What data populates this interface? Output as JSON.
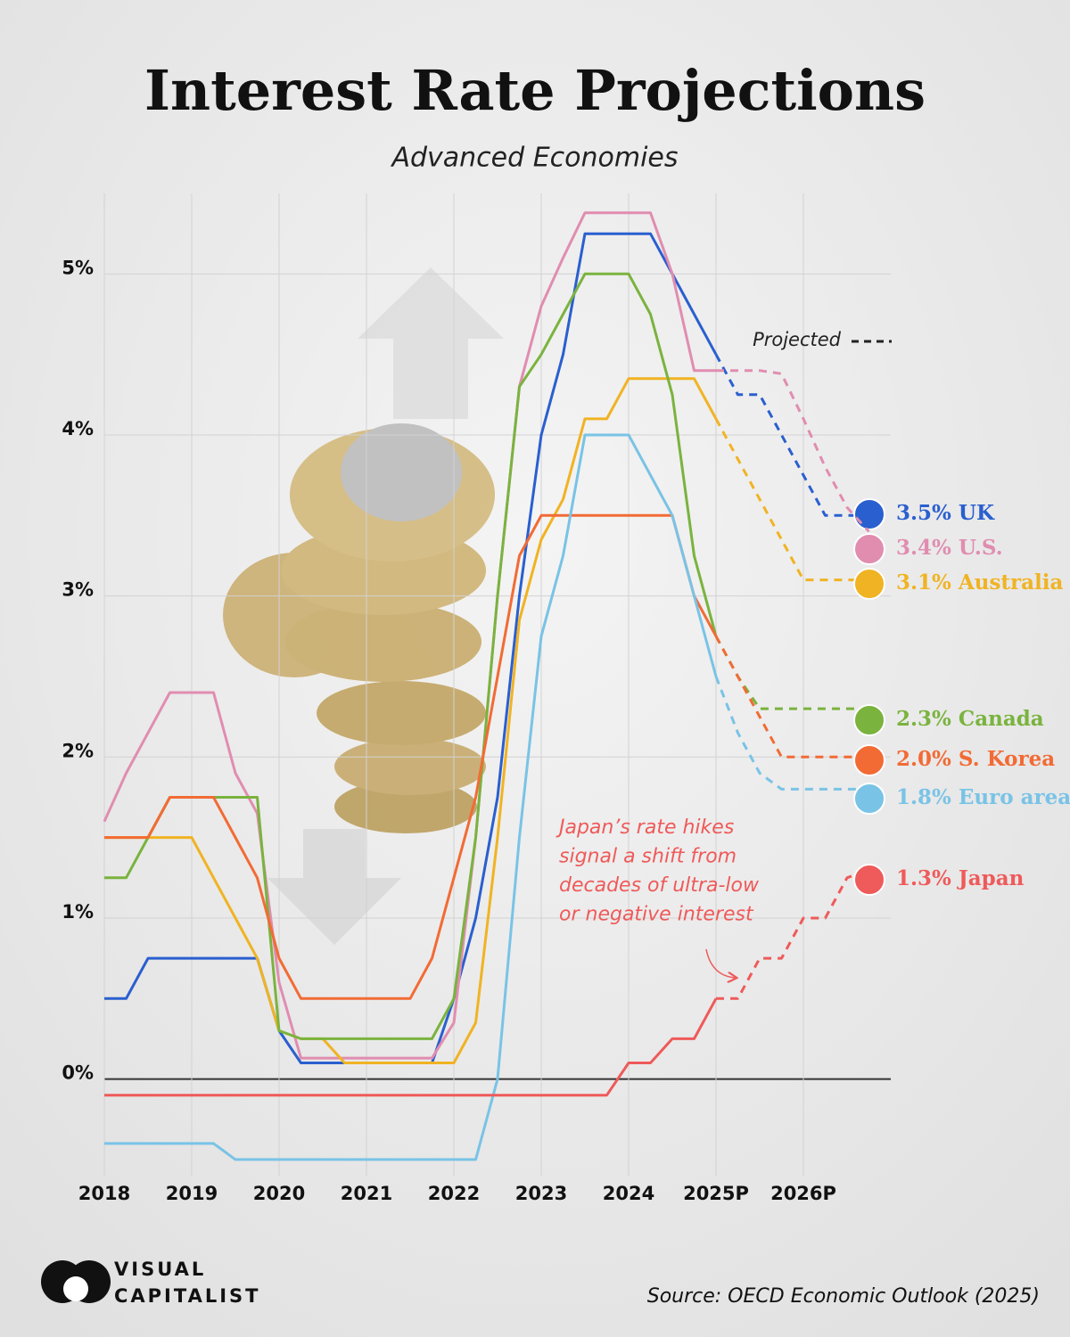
{
  "chart_data": {
    "type": "line",
    "title": "Interest Rate Projections",
    "subtitle": "Advanced Economies",
    "x": [
      2018,
      2018.25,
      2018.5,
      2018.75,
      2019,
      2019.25,
      2019.5,
      2019.75,
      2020,
      2020.25,
      2020.5,
      2020.75,
      2021,
      2021.25,
      2021.5,
      2021.75,
      2022,
      2022.25,
      2022.5,
      2022.75,
      2023,
      2023.25,
      2023.5,
      2023.75,
      2024,
      2024.25,
      2024.5,
      2024.75,
      2025,
      2025.25,
      2025.5,
      2025.75,
      2026,
      2026.25,
      2026.5,
      2026.75
    ],
    "projected_from": 2025,
    "projected_label": "Projected",
    "series": [
      {
        "name": "UK",
        "color": "#2a5fcf",
        "values": [
          0.5,
          0.5,
          0.75,
          0.75,
          0.75,
          0.75,
          0.75,
          0.75,
          0.3,
          0.1,
          0.1,
          0.1,
          0.1,
          0.1,
          0.1,
          0.1,
          0.5,
          1.0,
          1.75,
          3.0,
          4.0,
          4.5,
          5.25,
          5.25,
          5.25,
          5.25,
          5.0,
          4.75,
          4.5,
          4.25,
          4.25,
          4.0,
          3.75,
          3.5,
          3.5,
          3.5
        ],
        "value_labels": [
          null,
          null,
          null,
          null,
          null,
          null,
          null,
          null,
          null,
          null,
          null,
          null,
          null,
          null,
          null,
          null,
          null,
          null,
          null,
          null,
          null,
          null,
          null,
          null,
          null,
          null,
          null,
          null,
          null,
          null,
          null,
          null,
          null,
          null,
          null,
          "3.5%"
        ]
      },
      {
        "name": "U.S.",
        "color": "#e08db0",
        "values": [
          1.6,
          1.9,
          2.15,
          2.4,
          2.4,
          2.4,
          1.9,
          1.65,
          0.6,
          0.13,
          0.13,
          0.13,
          0.13,
          0.13,
          0.13,
          0.13,
          0.35,
          1.5,
          3.0,
          4.3,
          4.8,
          5.1,
          5.38,
          5.38,
          5.38,
          5.38,
          5.0,
          4.4,
          4.4,
          4.4,
          4.4,
          4.38,
          4.1,
          3.8,
          3.55,
          3.4
        ],
        "value_labels": [
          null,
          null,
          null,
          null,
          null,
          null,
          null,
          null,
          null,
          null,
          null,
          null,
          null,
          null,
          null,
          null,
          null,
          null,
          null,
          null,
          null,
          null,
          null,
          null,
          null,
          null,
          null,
          null,
          null,
          null,
          null,
          null,
          null,
          null,
          null,
          "3.4%"
        ]
      },
      {
        "name": "Australia",
        "color": "#f0b323",
        "values": [
          1.5,
          1.5,
          1.5,
          1.5,
          1.5,
          1.25,
          1.0,
          0.75,
          0.3,
          0.25,
          0.25,
          0.1,
          0.1,
          0.1,
          0.1,
          0.1,
          0.1,
          0.35,
          1.5,
          2.85,
          3.35,
          3.6,
          4.1,
          4.1,
          4.35,
          4.35,
          4.35,
          4.35,
          4.1,
          3.85,
          3.6,
          3.35,
          3.1,
          3.1,
          3.1,
          3.1
        ],
        "value_labels": [
          null,
          null,
          null,
          null,
          null,
          null,
          null,
          null,
          null,
          null,
          null,
          null,
          null,
          null,
          null,
          null,
          null,
          null,
          null,
          null,
          null,
          null,
          null,
          null,
          null,
          null,
          null,
          null,
          null,
          null,
          null,
          null,
          null,
          null,
          null,
          "3.1%"
        ]
      },
      {
        "name": "Canada",
        "color": "#7ab33e",
        "values": [
          1.25,
          1.25,
          1.5,
          1.75,
          1.75,
          1.75,
          1.75,
          1.75,
          0.3,
          0.25,
          0.25,
          0.25,
          0.25,
          0.25,
          0.25,
          0.25,
          0.5,
          1.5,
          3.0,
          4.3,
          4.5,
          4.75,
          5.0,
          5.0,
          5.0,
          4.75,
          4.25,
          3.25,
          2.75,
          2.5,
          2.3,
          2.3,
          2.3,
          2.3,
          2.3,
          2.3
        ],
        "value_labels": [
          null,
          null,
          null,
          null,
          null,
          null,
          null,
          null,
          null,
          null,
          null,
          null,
          null,
          null,
          null,
          null,
          null,
          null,
          null,
          null,
          null,
          null,
          null,
          null,
          null,
          null,
          null,
          null,
          null,
          null,
          null,
          null,
          null,
          null,
          null,
          "2.3%"
        ]
      },
      {
        "name": "S. Korea",
        "color": "#f26b35",
        "values": [
          1.5,
          1.5,
          1.5,
          1.75,
          1.75,
          1.75,
          1.5,
          1.25,
          0.75,
          0.5,
          0.5,
          0.5,
          0.5,
          0.5,
          0.5,
          0.75,
          1.25,
          1.75,
          2.5,
          3.25,
          3.5,
          3.5,
          3.5,
          3.5,
          3.5,
          3.5,
          3.5,
          3.0,
          2.75,
          2.5,
          2.25,
          2.0,
          2.0,
          2.0,
          2.0,
          2.0
        ],
        "value_labels": [
          null,
          null,
          null,
          null,
          null,
          null,
          null,
          null,
          null,
          null,
          null,
          null,
          null,
          null,
          null,
          null,
          null,
          null,
          null,
          null,
          null,
          null,
          null,
          null,
          null,
          null,
          null,
          null,
          null,
          null,
          null,
          null,
          null,
          null,
          null,
          "2.0%"
        ]
      },
      {
        "name": "Euro area",
        "color": "#79c3e6",
        "values": [
          -0.4,
          -0.4,
          -0.4,
          -0.4,
          -0.4,
          -0.4,
          -0.5,
          -0.5,
          -0.5,
          -0.5,
          -0.5,
          -0.5,
          -0.5,
          -0.5,
          -0.5,
          -0.5,
          -0.5,
          -0.5,
          0.0,
          1.5,
          2.75,
          3.25,
          4.0,
          4.0,
          4.0,
          3.75,
          3.5,
          3.0,
          2.5,
          2.15,
          1.9,
          1.8,
          1.8,
          1.8,
          1.8,
          1.8
        ],
        "value_labels": [
          null,
          null,
          null,
          null,
          null,
          null,
          null,
          null,
          null,
          null,
          null,
          null,
          null,
          null,
          null,
          null,
          null,
          null,
          null,
          null,
          null,
          null,
          null,
          null,
          null,
          null,
          null,
          null,
          null,
          null,
          null,
          null,
          null,
          null,
          null,
          "1.8%"
        ]
      },
      {
        "name": "Japan",
        "color": "#ef5a5a",
        "values": [
          -0.1,
          -0.1,
          -0.1,
          -0.1,
          -0.1,
          -0.1,
          -0.1,
          -0.1,
          -0.1,
          -0.1,
          -0.1,
          -0.1,
          -0.1,
          -0.1,
          -0.1,
          -0.1,
          -0.1,
          -0.1,
          -0.1,
          -0.1,
          -0.1,
          -0.1,
          -0.1,
          -0.1,
          0.1,
          0.1,
          0.25,
          0.25,
          0.5,
          0.5,
          0.75,
          0.75,
          1.0,
          1.0,
          1.25,
          1.3
        ],
        "value_labels": [
          null,
          null,
          null,
          null,
          null,
          null,
          null,
          null,
          null,
          null,
          null,
          null,
          null,
          null,
          null,
          null,
          null,
          null,
          null,
          null,
          null,
          null,
          null,
          null,
          null,
          null,
          null,
          null,
          null,
          null,
          null,
          null,
          null,
          null,
          null,
          "1.3%"
        ]
      }
    ],
    "xlim": [
      2018,
      2027
    ],
    "xticks": [
      2018,
      2019,
      2020,
      2021,
      2022,
      2023,
      2024,
      {
        "value": 2025,
        "label": "2025P"
      },
      {
        "value": 2026,
        "label": "2026P"
      }
    ],
    "ylim": [
      -0.6,
      5.5
    ],
    "yticks": [
      {
        "value": 0,
        "label": "0%"
      },
      {
        "value": 1,
        "label": "1%"
      },
      {
        "value": 2,
        "label": "2%"
      },
      {
        "value": 3,
        "label": "3%"
      },
      {
        "value": 4,
        "label": "4%"
      },
      {
        "value": 5,
        "label": "5%"
      }
    ],
    "grid": true,
    "annotation": [
      "Japan’s rate hikes",
      "signal a shift from",
      "decades of ultra-low",
      "or negative interest"
    ],
    "source": "Source: OECD Economic Outlook (2025)",
    "brand": [
      "VISUAL",
      "CAPITALIST"
    ]
  }
}
